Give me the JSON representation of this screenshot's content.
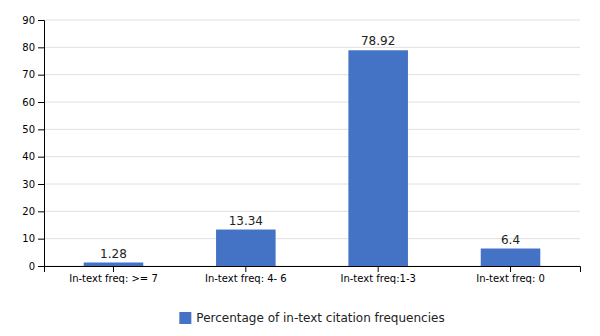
{
  "chart_data": {
    "type": "bar",
    "categories": [
      "In-text freq: >= 7",
      "In-text freq: 4- 6",
      "In-text freq:1-3",
      "In-text freq: 0"
    ],
    "series": [
      {
        "name": "Percentage of in-text citation frequencies",
        "color": "#4472c4",
        "values": [
          1.28,
          13.34,
          78.92,
          6.4
        ]
      }
    ],
    "ylim": [
      0,
      90
    ],
    "yticks": [
      0,
      10,
      20,
      30,
      40,
      50,
      60,
      70,
      80,
      90
    ],
    "grid": true,
    "data_labels": true,
    "legend": "bottom"
  }
}
